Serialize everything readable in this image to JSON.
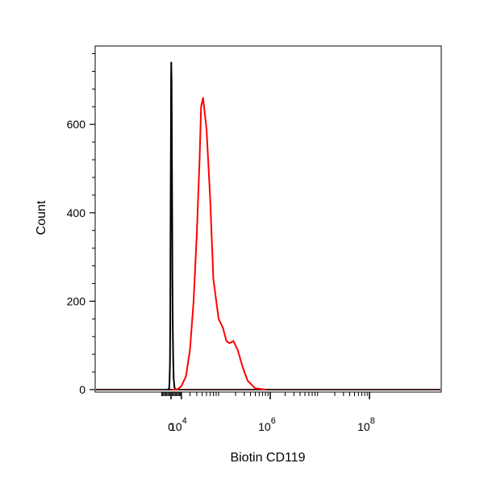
{
  "chart_data": {
    "type": "line",
    "xlabel": "Biotin CD119",
    "ylabel": "Count",
    "x_scale": "biexponential",
    "x_ticks": [
      {
        "base": "0",
        "exp": "",
        "value": 0
      },
      {
        "base": "10",
        "exp": "4",
        "value": 10000
      },
      {
        "base": "10",
        "exp": "6",
        "value": 1000000
      },
      {
        "base": "10",
        "exp": "8",
        "value": 100000000
      }
    ],
    "y_ticks": [
      0,
      200,
      400,
      600
    ],
    "ylim": [
      0,
      780
    ],
    "grid": false,
    "legend": "none",
    "series": [
      {
        "color": "#000000",
        "x": [
          -3000,
          -1800,
          -1400,
          -1000,
          -700,
          -500,
          -300,
          -100,
          0,
          100,
          200,
          350,
          500,
          700,
          900,
          1100,
          1300,
          1600,
          2000,
          2500,
          3200,
          4000
        ],
        "y": [
          0,
          2,
          15,
          60,
          170,
          300,
          450,
          580,
          650,
          700,
          740,
          715,
          700,
          620,
          500,
          380,
          260,
          150,
          70,
          25,
          5,
          0
        ]
      },
      {
        "color": "#ff0000",
        "x": [
          1000,
          2000,
          4000,
          7000,
          10000,
          15000,
          20000,
          25000,
          30000,
          35000,
          38000,
          42000,
          50000,
          60000,
          70000,
          90000,
          110000,
          130000,
          150000,
          180000,
          220000,
          280000,
          350000,
          500000,
          800000
        ],
        "y": [
          0,
          0,
          0,
          2,
          8,
          30,
          90,
          200,
          350,
          520,
          640,
          660,
          590,
          430,
          250,
          160,
          140,
          110,
          105,
          110,
          90,
          50,
          20,
          3,
          0
        ]
      }
    ]
  }
}
